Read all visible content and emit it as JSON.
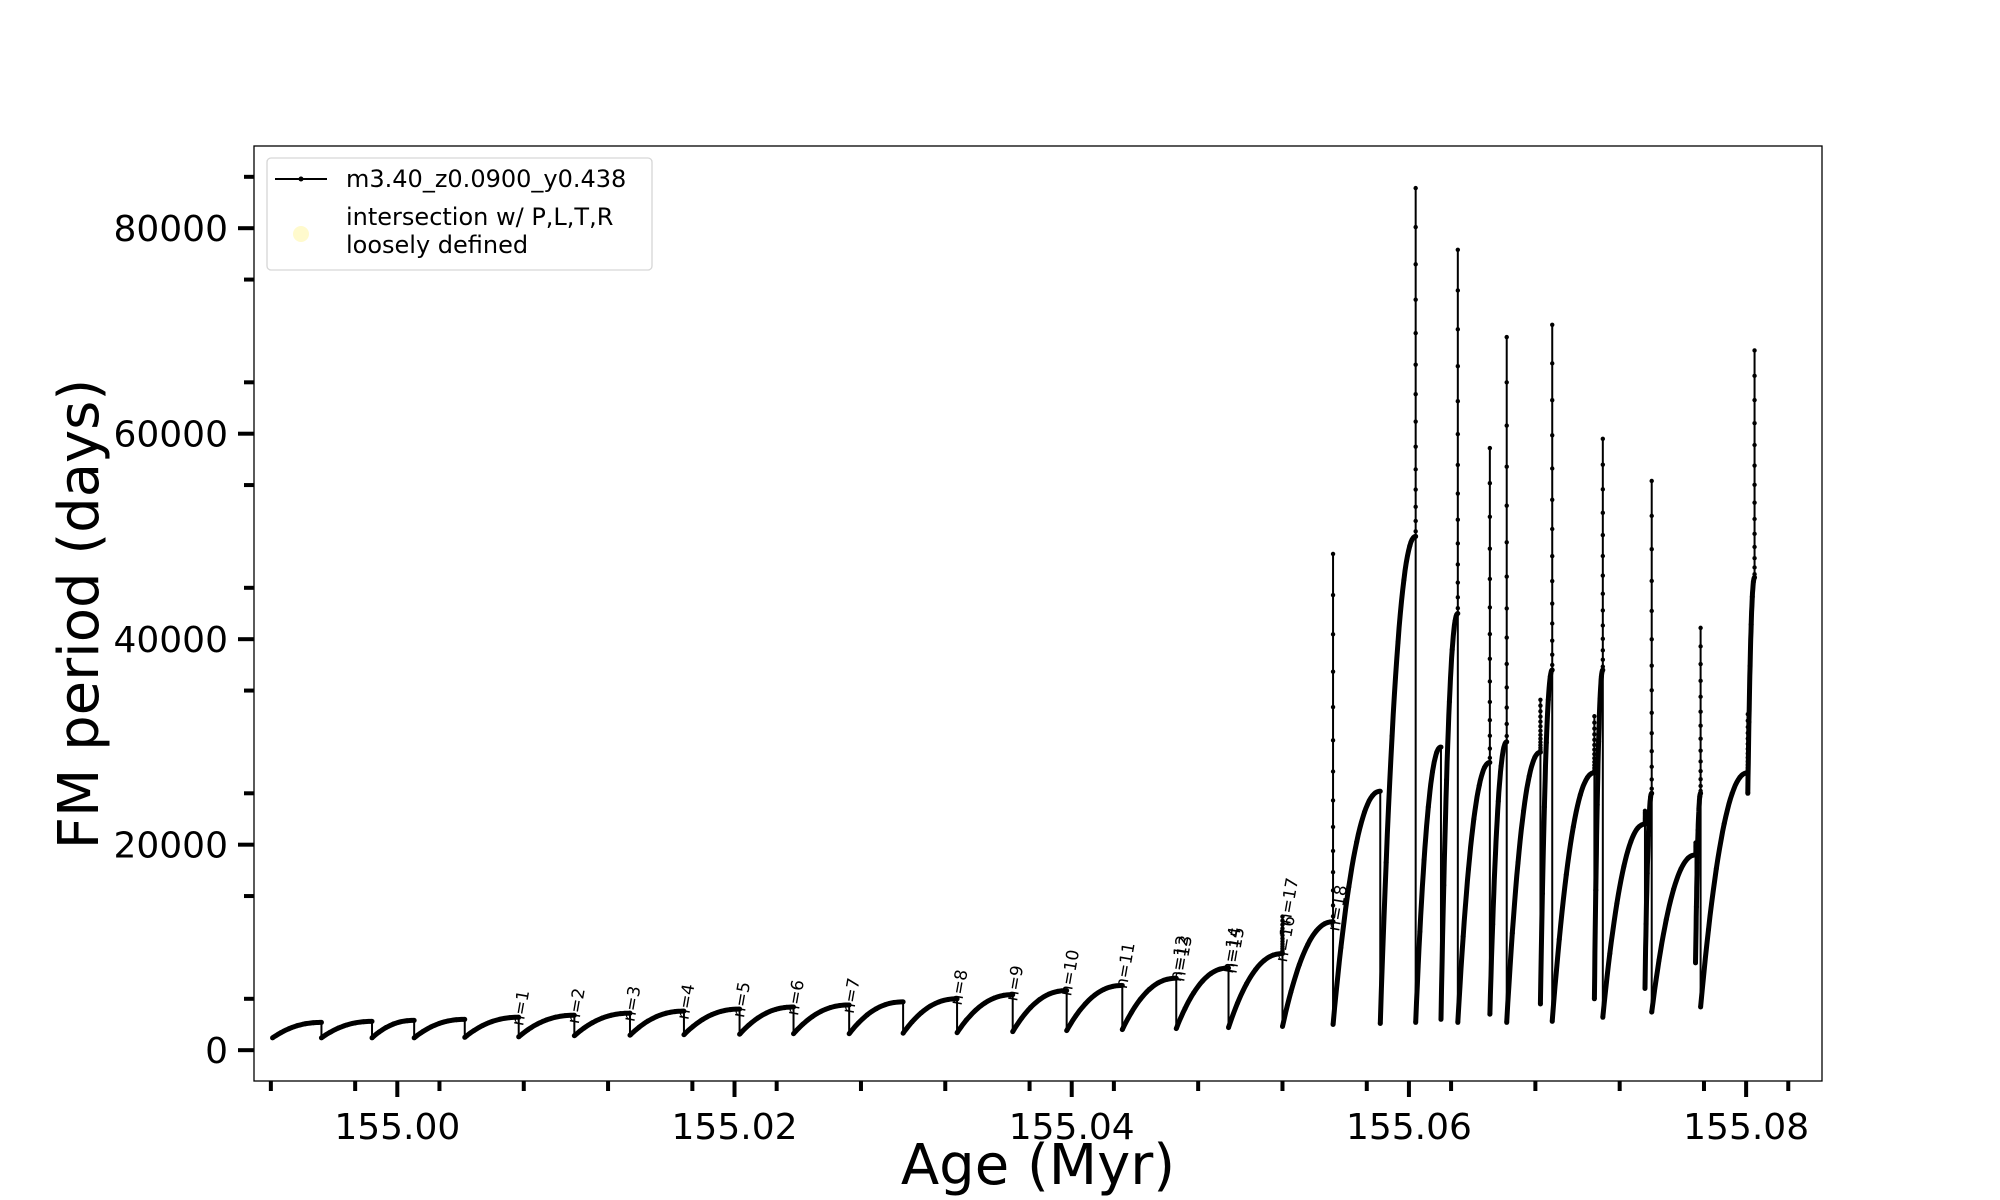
{
  "chart_data": {
    "type": "line",
    "title": "",
    "xlabel": "Age (Myr)",
    "ylabel": "FM period (days)",
    "xlim": [
      154.9915,
      155.0845
    ],
    "ylim": [
      -3000,
      88000
    ],
    "x_ticks": [
      155.0,
      155.02,
      155.04,
      155.06,
      155.08
    ],
    "x_tick_labels": [
      "155.00",
      "155.02",
      "155.04",
      "155.06",
      "155.08"
    ],
    "y_ticks": [
      0,
      20000,
      40000,
      60000,
      80000
    ],
    "y_tick_labels": [
      "0",
      "20000",
      "40000",
      "60000",
      "80000"
    ],
    "grid": false,
    "legend_position": "top-left",
    "legend": [
      {
        "label": "m3.40_z0.0900_y0.438",
        "color": "#000000",
        "marker": "line-dot"
      },
      {
        "label": "intersection w/ P,L,T,R\nloosely defined",
        "color": "#fffacd",
        "marker": "circle"
      }
    ],
    "series": [
      {
        "name": "m3.40_z0.0900_y0.438",
        "color": "#000000",
        "cycles": [
          {
            "start": 154.9926,
            "end": 154.9955,
            "min": 1200,
            "max": 2700,
            "spike": null
          },
          {
            "start": 154.9955,
            "end": 154.9985,
            "min": 1200,
            "max": 2800,
            "spike": null
          },
          {
            "start": 154.9985,
            "end": 155.001,
            "min": 1200,
            "max": 2900,
            "spike": null
          },
          {
            "start": 155.001,
            "end": 155.004,
            "min": 1200,
            "max": 3000,
            "spike": null
          },
          {
            "start": 155.004,
            "end": 155.0072,
            "min": 1250,
            "max": 3200,
            "spike": null
          },
          {
            "start": 155.0072,
            "end": 155.0105,
            "min": 1300,
            "max": 3400,
            "spike": null
          },
          {
            "start": 155.0105,
            "end": 155.0138,
            "min": 1400,
            "max": 3600,
            "spike": null
          },
          {
            "start": 155.0138,
            "end": 155.017,
            "min": 1450,
            "max": 3800,
            "spike": null
          },
          {
            "start": 155.017,
            "end": 155.0203,
            "min": 1500,
            "max": 4000,
            "spike": null
          },
          {
            "start": 155.0203,
            "end": 155.0235,
            "min": 1550,
            "max": 4200,
            "spike": null
          },
          {
            "start": 155.0235,
            "end": 155.0268,
            "min": 1600,
            "max": 4400,
            "spike": null
          },
          {
            "start": 155.0268,
            "end": 155.03,
            "min": 1600,
            "max": 4700,
            "spike": null
          },
          {
            "start": 155.03,
            "end": 155.0332,
            "min": 1650,
            "max": 5000,
            "spike": null
          },
          {
            "start": 155.0332,
            "end": 155.0365,
            "min": 1700,
            "max": 5400,
            "spike": null
          },
          {
            "start": 155.0365,
            "end": 155.0397,
            "min": 1800,
            "max": 5800,
            "spike": null
          },
          {
            "start": 155.0397,
            "end": 155.043,
            "min": 1900,
            "max": 6300,
            "spike": null
          },
          {
            "start": 155.043,
            "end": 155.0462,
            "min": 2000,
            "max": 7000,
            "spike": null
          },
          {
            "start": 155.0462,
            "end": 155.0493,
            "min": 2100,
            "max": 8000,
            "spike": null
          },
          {
            "start": 155.0493,
            "end": 155.0525,
            "min": 2200,
            "max": 9400,
            "spike": 13000
          },
          {
            "start": 155.0525,
            "end": 155.0555,
            "min": 2300,
            "max": 12500,
            "spike": 48300
          },
          {
            "start": 155.0555,
            "end": 155.0583,
            "min": 2500,
            "max": 25200,
            "spike": null
          },
          {
            "start": 155.0583,
            "end": 155.0604,
            "min": 2600,
            "max": 50000,
            "spike": 83900
          },
          {
            "start": 155.0604,
            "end": 155.0619,
            "min": 2700,
            "max": 29500,
            "spike": null
          },
          {
            "start": 155.0619,
            "end": 155.0629,
            "min": 3000,
            "max": 42500,
            "spike": 77900
          },
          {
            "start": 155.0629,
            "end": 155.0648,
            "min": 2700,
            "max": 28000,
            "spike": 58600
          },
          {
            "start": 155.0648,
            "end": 155.0658,
            "min": 3500,
            "max": 30000,
            "spike": 69400
          },
          {
            "start": 155.0658,
            "end": 155.0678,
            "min": 2700,
            "max": 29000,
            "spike": 34100
          },
          {
            "start": 155.0678,
            "end": 155.0685,
            "min": 4500,
            "max": 37000,
            "spike": 70600
          },
          {
            "start": 155.0685,
            "end": 155.071,
            "min": 2800,
            "max": 27000,
            "spike": 32500
          },
          {
            "start": 155.071,
            "end": 155.0715,
            "min": 5000,
            "max": 37000,
            "spike": 59500
          },
          {
            "start": 155.0715,
            "end": 155.074,
            "min": 3200,
            "max": 22000,
            "spike": 23300
          },
          {
            "start": 155.074,
            "end": 155.0744,
            "min": 6000,
            "max": 25000,
            "spike": 55400
          },
          {
            "start": 155.0744,
            "end": 155.077,
            "min": 3700,
            "max": 19000,
            "spike": 20200
          },
          {
            "start": 155.077,
            "end": 155.0773,
            "min": 8500,
            "max": 25000,
            "spike": 41100
          },
          {
            "start": 155.0773,
            "end": 155.0801,
            "min": 4200,
            "max": 27000,
            "spike": 32700
          },
          {
            "start": 155.0801,
            "end": 155.0805,
            "min": 25000,
            "max": 46000,
            "spike": 68100
          }
        ]
      }
    ],
    "annotations": [
      {
        "text": "n=1",
        "x": 155.0071,
        "y": 2300
      },
      {
        "text": "n=2",
        "x": 155.0104,
        "y": 2500
      },
      {
        "text": "n=3",
        "x": 155.0137,
        "y": 2700
      },
      {
        "text": "n=4",
        "x": 155.0169,
        "y": 2900
      },
      {
        "text": "n=5",
        "x": 155.0202,
        "y": 3100
      },
      {
        "text": "n=6",
        "x": 155.0234,
        "y": 3300
      },
      {
        "text": "n=7",
        "x": 155.0267,
        "y": 3500
      },
      {
        "text": "n=8",
        "x": 155.0331,
        "y": 4300
      },
      {
        "text": "n=9",
        "x": 155.0364,
        "y": 4700
      },
      {
        "text": "n=10",
        "x": 155.0396,
        "y": 5200
      },
      {
        "text": "n=11",
        "x": 155.0429,
        "y": 5900
      },
      {
        "text": "n=12",
        "x": 155.0461,
        "y": 6600
      },
      {
        "text": "n=13",
        "x": 155.0463,
        "y": 6600
      },
      {
        "text": "n=14",
        "x": 155.0492,
        "y": 7400
      },
      {
        "text": "n=15",
        "x": 155.0494,
        "y": 7400
      },
      {
        "text": "n=16",
        "x": 155.0524,
        "y": 8500
      },
      {
        "text": "n=17",
        "x": 155.0526,
        "y": 12200
      },
      {
        "text": "n=18",
        "x": 155.0555,
        "y": 11500
      }
    ]
  }
}
